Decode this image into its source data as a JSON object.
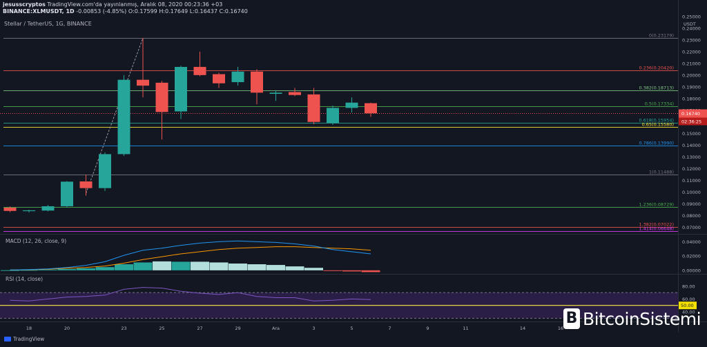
{
  "header": {
    "author": "jesusscryptos",
    "published": "TradingView.com'da yayınlanmış, Aralık 08, 2020 00:23:36 +03",
    "symbol": "BINANCE:XLMUSDT, 1D",
    "change": "-0.00853 (-4.85%)",
    "o_label": "O:",
    "o_value": "0.17599",
    "h_label": "H:",
    "h_value": "0.17649",
    "l_label": "L:",
    "l_value": "0.16437",
    "c_label": "C:",
    "c_value": "0.16740"
  },
  "pair_title": "Stellar / TetherUS, 1G, BINANCE",
  "macd_label": "MACD (12, 26, close, 9)",
  "rsi_label": "RSI (14, close)",
  "logo_text": "TradingView",
  "watermark": {
    "badge": "B",
    "text": "BitcoinSistemi"
  },
  "colors": {
    "up": "#26a69a",
    "down": "#ef5350",
    "background": "#131722",
    "macd_line": "#2196f3",
    "signal_line": "#ff9800",
    "rsi_line": "#7e57c2",
    "rsi_band": "#2a1e47",
    "fib_red": "#ef5350",
    "fib_green": "#4caf50",
    "fib_blue": "#2196f3",
    "fib_yellow": "#ffeb3b",
    "fib_gray": "#787b86"
  },
  "chart_data": {
    "type": "candlestick",
    "title": "Stellar / TetherUS, 1G, BINANCE",
    "yunit": "USDT",
    "ylim": [
      0.065,
      0.25
    ],
    "x_tick_labels": [
      "18",
      "20",
      "23",
      "25",
      "27",
      "29",
      "Ara",
      "3",
      "5",
      "7",
      "9",
      "11",
      "14",
      "16"
    ],
    "x_tick_days": [
      1,
      3,
      6,
      8,
      10,
      12,
      14,
      16,
      18,
      20,
      22,
      24,
      27,
      29
    ],
    "y_tick_labels": [
      "0.25000",
      "0.24000",
      "0.23000",
      "0.22000",
      "0.21000",
      "0.20000",
      "0.19000",
      "0.18000",
      "0.17000",
      "0.16000",
      "0.15000",
      "0.14000",
      "0.13000",
      "0.12000",
      "0.11000",
      "0.10000",
      "0.09000",
      "0.08000",
      "0.07000"
    ],
    "y_ticks": [
      0.25,
      0.24,
      0.23,
      0.22,
      0.21,
      0.2,
      0.19,
      0.18,
      0.17,
      0.16,
      0.15,
      0.14,
      0.13,
      0.12,
      0.11,
      0.1,
      0.09,
      0.08,
      0.07
    ],
    "candles": [
      {
        "day": 0,
        "o": 0.0868,
        "h": 0.0878,
        "l": 0.083,
        "c": 0.084
      },
      {
        "day": 1,
        "o": 0.0838,
        "h": 0.085,
        "l": 0.0826,
        "c": 0.0845
      },
      {
        "day": 2,
        "o": 0.0843,
        "h": 0.089,
        "l": 0.0836,
        "c": 0.088
      },
      {
        "day": 3,
        "o": 0.088,
        "h": 0.1095,
        "l": 0.087,
        "c": 0.109
      },
      {
        "day": 4,
        "o": 0.1092,
        "h": 0.115,
        "l": 0.097,
        "c": 0.1035
      },
      {
        "day": 5,
        "o": 0.1035,
        "h": 0.134,
        "l": 0.101,
        "c": 0.1325
      },
      {
        "day": 6,
        "o": 0.1325,
        "h": 0.2,
        "l": 0.131,
        "c": 0.196
      },
      {
        "day": 7,
        "o": 0.196,
        "h": 0.2317,
        "l": 0.181,
        "c": 0.191
      },
      {
        "day": 8,
        "o": 0.1935,
        "h": 0.195,
        "l": 0.145,
        "c": 0.1685
      },
      {
        "day": 9,
        "o": 0.169,
        "h": 0.208,
        "l": 0.1625,
        "c": 0.207
      },
      {
        "day": 10,
        "o": 0.207,
        "h": 0.22,
        "l": 0.199,
        "c": 0.2
      },
      {
        "day": 11,
        "o": 0.2008,
        "h": 0.202,
        "l": 0.189,
        "c": 0.193
      },
      {
        "day": 12,
        "o": 0.194,
        "h": 0.207,
        "l": 0.191,
        "c": 0.203
      },
      {
        "day": 13,
        "o": 0.203,
        "h": 0.205,
        "l": 0.175,
        "c": 0.185
      },
      {
        "day": 14,
        "o": 0.184,
        "h": 0.187,
        "l": 0.178,
        "c": 0.185
      },
      {
        "day": 15,
        "o": 0.1855,
        "h": 0.189,
        "l": 0.182,
        "c": 0.183
      },
      {
        "day": 16,
        "o": 0.1835,
        "h": 0.189,
        "l": 0.158,
        "c": 0.16
      },
      {
        "day": 17,
        "o": 0.159,
        "h": 0.174,
        "l": 0.1575,
        "c": 0.172
      },
      {
        "day": 18,
        "o": 0.172,
        "h": 0.181,
        "l": 0.168,
        "c": 0.1765
      },
      {
        "day": 19,
        "o": 0.176,
        "h": 0.1765,
        "l": 0.1644,
        "c": 0.1674
      }
    ],
    "fib_levels": [
      {
        "label": "0(0.23179)",
        "value": 0.23179,
        "color": "#787b86"
      },
      {
        "label": "0.236(0.20420)",
        "value": 0.2042,
        "color": "#ef5350"
      },
      {
        "label": "0.382(0.18713)",
        "value": 0.18713,
        "color": "#81c784"
      },
      {
        "label": "0.5(0.17334)",
        "value": 0.17334,
        "color": "#4caf50"
      },
      {
        "label": "0.618(0.15954)",
        "value": 0.15954,
        "color": "#26a69a"
      },
      {
        "label": "0.65(0.15580)",
        "value": 0.1558,
        "color": "#ffeb3b"
      },
      {
        "label": "0.786(0.13990)",
        "value": 0.1399,
        "color": "#2196f3"
      },
      {
        "label": "1(0.11488)",
        "value": 0.11488,
        "color": "#787b86"
      },
      {
        "label": "1.236(0.08729)",
        "value": 0.08729,
        "color": "#4caf50"
      },
      {
        "label": "1.382(0.07022)",
        "value": 0.07022,
        "color": "#ef5350"
      },
      {
        "label": "1.414(0.06648)",
        "value": 0.06648,
        "color": "#e040fb"
      }
    ],
    "trend_line": [
      {
        "day": 4,
        "value": 0.099
      },
      {
        "day": 7,
        "value": 0.2317
      }
    ],
    "last_price": {
      "label": "0.16740",
      "value": 0.1674,
      "countdown": "02:36:25"
    },
    "macd": {
      "y_tick_labels": [
        "0.04000",
        "0.02000",
        "0.00000"
      ],
      "y_ticks": [
        0.04,
        0.02,
        0.0
      ],
      "ylim": [
        -0.004,
        0.05
      ],
      "histogram": [
        0.0002,
        0.0005,
        0.001,
        0.0018,
        0.0028,
        0.0045,
        0.0085,
        0.011,
        0.0125,
        0.012,
        0.012,
        0.011,
        0.0095,
        0.0085,
        0.0075,
        0.0055,
        0.0035,
        -0.0005,
        -0.0015,
        -0.0025
      ],
      "hist_colors": [
        "#26a69a",
        "#26a69a",
        "#26a69a",
        "#26a69a",
        "#26a69a",
        "#26a69a",
        "#26a69a",
        "#26a69a",
        "#b2dfdb",
        "#26a69a",
        "#b2dfdb",
        "#b2dfdb",
        "#b2dfdb",
        "#b2dfdb",
        "#b2dfdb",
        "#b2dfdb",
        "#b2dfdb",
        "#ef5350",
        "#ef5350",
        "#ef5350"
      ],
      "macd": [
        0.0005,
        0.001,
        0.002,
        0.004,
        0.007,
        0.012,
        0.021,
        0.028,
        0.031,
        0.035,
        0.038,
        0.04,
        0.041,
        0.04,
        0.039,
        0.037,
        0.034,
        0.029,
        0.026,
        0.023
      ],
      "signal": [
        0.0004,
        0.0008,
        0.0015,
        0.003,
        0.004,
        0.006,
        0.01,
        0.015,
        0.019,
        0.023,
        0.026,
        0.029,
        0.031,
        0.032,
        0.033,
        0.033,
        0.032,
        0.031,
        0.03,
        0.028
      ]
    },
    "rsi": {
      "y_tick_labels": [
        "80.00",
        "60.00",
        "50.00",
        "40.00"
      ],
      "y_ticks": [
        80,
        60,
        50,
        40
      ],
      "ylim": [
        25,
        98
      ],
      "band": [
        30,
        70
      ],
      "level_50_label": "50.00",
      "values": [
        58,
        57,
        60,
        63,
        64,
        66,
        75,
        78,
        77,
        72,
        69,
        67,
        70,
        64,
        62,
        62,
        57,
        58,
        60,
        59
      ]
    }
  }
}
